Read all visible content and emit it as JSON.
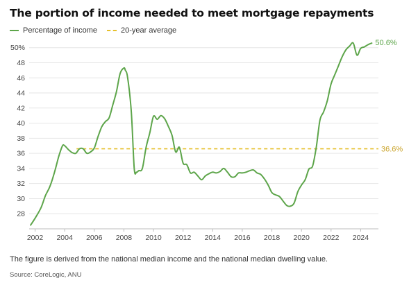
{
  "title": "The portion of income needed to meet mortgage repayments",
  "legend": {
    "series_label": "Percentage of income",
    "average_label": "20-year average"
  },
  "note": "The figure is derived from the national median income and the national median dwelling value.",
  "source": "Source: CoreLogic, ANU",
  "colors": {
    "series": "#5da54a",
    "average": "#e6c02b",
    "grid": "#e6e6e6"
  },
  "chart_data": {
    "type": "line",
    "xlim": [
      2001.6,
      2025.2
    ],
    "ylim": [
      26,
      50.8
    ],
    "x_ticks": [
      2002,
      2004,
      2006,
      2008,
      2010,
      2012,
      2014,
      2016,
      2018,
      2020,
      2022,
      2024
    ],
    "y_ticks": [
      {
        "v": 50,
        "label": "50%"
      },
      {
        "v": 48,
        "label": "48"
      },
      {
        "v": 46,
        "label": "46"
      },
      {
        "v": 44,
        "label": "44"
      },
      {
        "v": 42,
        "label": "42"
      },
      {
        "v": 40,
        "label": "40"
      },
      {
        "v": 38,
        "label": "38"
      },
      {
        "v": 36,
        "label": "36"
      },
      {
        "v": 34,
        "label": "34"
      },
      {
        "v": 32,
        "label": "32"
      },
      {
        "v": 30,
        "label": "30"
      },
      {
        "v": 28,
        "label": "28"
      }
    ],
    "series": [
      {
        "name": "Percentage of income",
        "end_label": "50.6%",
        "x": [
          2001.7,
          2002.0,
          2002.4,
          2002.7,
          2003.0,
          2003.3,
          2003.6,
          2003.85,
          2004.0,
          2004.25,
          2004.5,
          2004.75,
          2005.0,
          2005.25,
          2005.5,
          2005.75,
          2006.0,
          2006.25,
          2006.5,
          2006.75,
          2007.0,
          2007.25,
          2007.5,
          2007.75,
          2008.0,
          2008.1,
          2008.25,
          2008.5,
          2008.7,
          2008.85,
          2009.0,
          2009.25,
          2009.5,
          2009.75,
          2010.0,
          2010.25,
          2010.5,
          2010.75,
          2011.0,
          2011.25,
          2011.5,
          2011.75,
          2012.0,
          2012.25,
          2012.5,
          2012.75,
          2013.0,
          2013.25,
          2013.5,
          2013.75,
          2014.0,
          2014.25,
          2014.5,
          2014.75,
          2015.0,
          2015.25,
          2015.5,
          2015.75,
          2016.0,
          2016.25,
          2016.5,
          2016.75,
          2017.0,
          2017.25,
          2017.5,
          2017.75,
          2018.0,
          2018.25,
          2018.5,
          2018.75,
          2019.0,
          2019.25,
          2019.5,
          2019.75,
          2020.0,
          2020.25,
          2020.5,
          2020.75,
          2021.0,
          2021.25,
          2021.5,
          2021.75,
          2022.0,
          2022.25,
          2022.5,
          2022.75,
          2023.0,
          2023.25,
          2023.5,
          2023.75,
          2024.0,
          2024.25,
          2024.5,
          2024.75
        ],
        "values": [
          26.5,
          27.4,
          28.8,
          30.4,
          31.6,
          33.4,
          35.6,
          37.0,
          37.0,
          36.5,
          36.1,
          36.0,
          36.6,
          36.6,
          36.0,
          36.2,
          36.7,
          38.2,
          39.5,
          40.2,
          40.7,
          42.4,
          44.2,
          46.6,
          47.3,
          47.0,
          46.1,
          41.5,
          34.0,
          33.5,
          33.7,
          34.0,
          36.8,
          38.7,
          40.9,
          40.5,
          41.0,
          40.6,
          39.6,
          38.4,
          36.2,
          36.8,
          34.7,
          34.5,
          33.4,
          33.5,
          33.0,
          32.5,
          33.0,
          33.3,
          33.5,
          33.4,
          33.6,
          34.0,
          33.5,
          32.9,
          32.9,
          33.4,
          33.4,
          33.5,
          33.7,
          33.8,
          33.4,
          33.2,
          32.6,
          31.8,
          30.8,
          30.5,
          30.3,
          29.7,
          29.1,
          29.0,
          29.4,
          30.9,
          31.8,
          32.5,
          33.9,
          34.3,
          36.8,
          40.4,
          41.5,
          43.0,
          45.2,
          46.4,
          47.6,
          48.8,
          49.7,
          50.2,
          50.6,
          49.0,
          49.9,
          50.1,
          50.4,
          50.6
        ]
      }
    ],
    "average": {
      "name": "20-year average",
      "value": 36.6,
      "label": "36.6%",
      "x_start": 2004.8
    }
  }
}
